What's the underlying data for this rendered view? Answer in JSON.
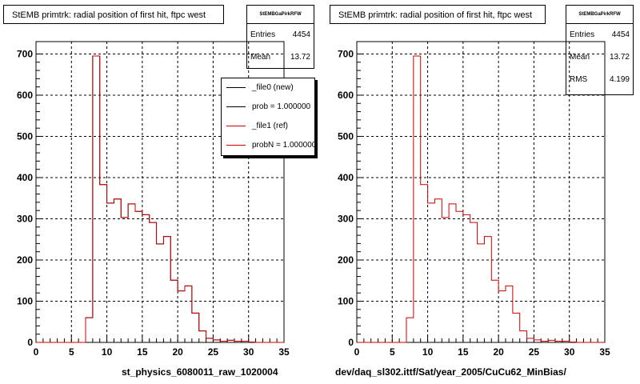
{
  "colors": {
    "series_new": "#000000",
    "series_ref": "#cc0000",
    "grid": "#000000"
  },
  "panels": [
    {
      "title": "StEMB primtrk: radial position of first hit, ftpc west",
      "stats_name": "StEMBGaPirkRFW",
      "stats": [
        {
          "label": "Entries",
          "value": "4454"
        },
        {
          "label": "Mean",
          "value": "13.72"
        }
      ],
      "xlabel": "st_physics_6080011_raw_1020004",
      "legend": [
        {
          "label": "_file0 (new)",
          "color": "#000000"
        },
        {
          "label": "prob = 1.000000",
          "color": "#000000"
        },
        {
          "label": "_file1 (ref)",
          "color": "#cc0000"
        },
        {
          "label": "probN = 1.000000",
          "color": "#cc0000"
        }
      ]
    },
    {
      "title": "StEMB primtrk: radial position of first hit, ftpc west",
      "stats_name": "StEMBGaPirkRFW",
      "stats": [
        {
          "label": "Entries",
          "value": "4454"
        },
        {
          "label": "Mean",
          "value": "13.72"
        },
        {
          "label": "RMS",
          "value": "4.199"
        }
      ],
      "xlabel": "dev/daq_sl302.ittf/Sat/year_2005/CuCu62_MinBias/"
    }
  ],
  "chart_data": [
    {
      "type": "histogram",
      "title": "StEMB primtrk: radial position of first hit, ftpc west",
      "xlabel": "st_physics_6080011_raw_1020004",
      "xlim": [
        0,
        35
      ],
      "ylim": [
        0,
        730
      ],
      "xticks": [
        0,
        5,
        10,
        15,
        20,
        25,
        30,
        35
      ],
      "yticks": [
        0,
        100,
        200,
        300,
        400,
        500,
        600,
        700
      ],
      "grid": true,
      "legend_position": "top-right",
      "bin_edges": [
        0,
        1,
        2,
        3,
        4,
        5,
        6,
        7,
        8,
        9,
        10,
        11,
        12,
        13,
        14,
        15,
        16,
        17,
        18,
        19,
        20,
        21,
        22,
        23,
        24,
        25,
        26,
        27,
        28,
        29,
        30,
        31,
        32,
        33,
        34,
        35
      ],
      "series": [
        {
          "name": "_file0 (new)",
          "values": [
            0,
            0,
            0,
            0,
            0,
            0,
            0,
            60,
            695,
            383,
            338,
            348,
            303,
            336,
            318,
            310,
            291,
            239,
            257,
            151,
            125,
            137,
            71,
            28,
            10,
            6,
            3,
            5,
            3,
            3,
            1,
            0,
            0,
            0,
            0
          ]
        },
        {
          "name": "_file1 (ref)",
          "values": [
            0,
            0,
            0,
            0,
            0,
            0,
            0,
            60,
            695,
            383,
            338,
            348,
            303,
            336,
            318,
            310,
            291,
            239,
            257,
            151,
            125,
            137,
            71,
            28,
            10,
            6,
            3,
            5,
            3,
            3,
            1,
            0,
            0,
            0,
            0
          ]
        }
      ],
      "stats": {
        "Entries": 4454,
        "Mean": 13.72
      }
    },
    {
      "type": "histogram",
      "title": "StEMB primtrk: radial position of first hit, ftpc west",
      "xlabel": "dev/daq_sl302.ittf/Sat/year_2005/CuCu62_MinBias/",
      "xlim": [
        0,
        35
      ],
      "ylim": [
        0,
        730
      ],
      "xticks": [
        0,
        5,
        10,
        15,
        20,
        25,
        30,
        35
      ],
      "yticks": [
        0,
        100,
        200,
        300,
        400,
        500,
        600,
        700
      ],
      "grid": true,
      "bin_edges": [
        0,
        1,
        2,
        3,
        4,
        5,
        6,
        7,
        8,
        9,
        10,
        11,
        12,
        13,
        14,
        15,
        16,
        17,
        18,
        19,
        20,
        21,
        22,
        23,
        24,
        25,
        26,
        27,
        28,
        29,
        30,
        31,
        32,
        33,
        34,
        35
      ],
      "series": [
        {
          "values": [
            0,
            0,
            0,
            0,
            0,
            0,
            0,
            60,
            695,
            383,
            338,
            348,
            303,
            336,
            318,
            310,
            291,
            239,
            257,
            151,
            125,
            137,
            71,
            28,
            10,
            6,
            3,
            5,
            3,
            3,
            1,
            0,
            0,
            0,
            0
          ]
        }
      ],
      "stats": {
        "Entries": 4454,
        "Mean": 13.72,
        "RMS": 4.199
      }
    }
  ]
}
